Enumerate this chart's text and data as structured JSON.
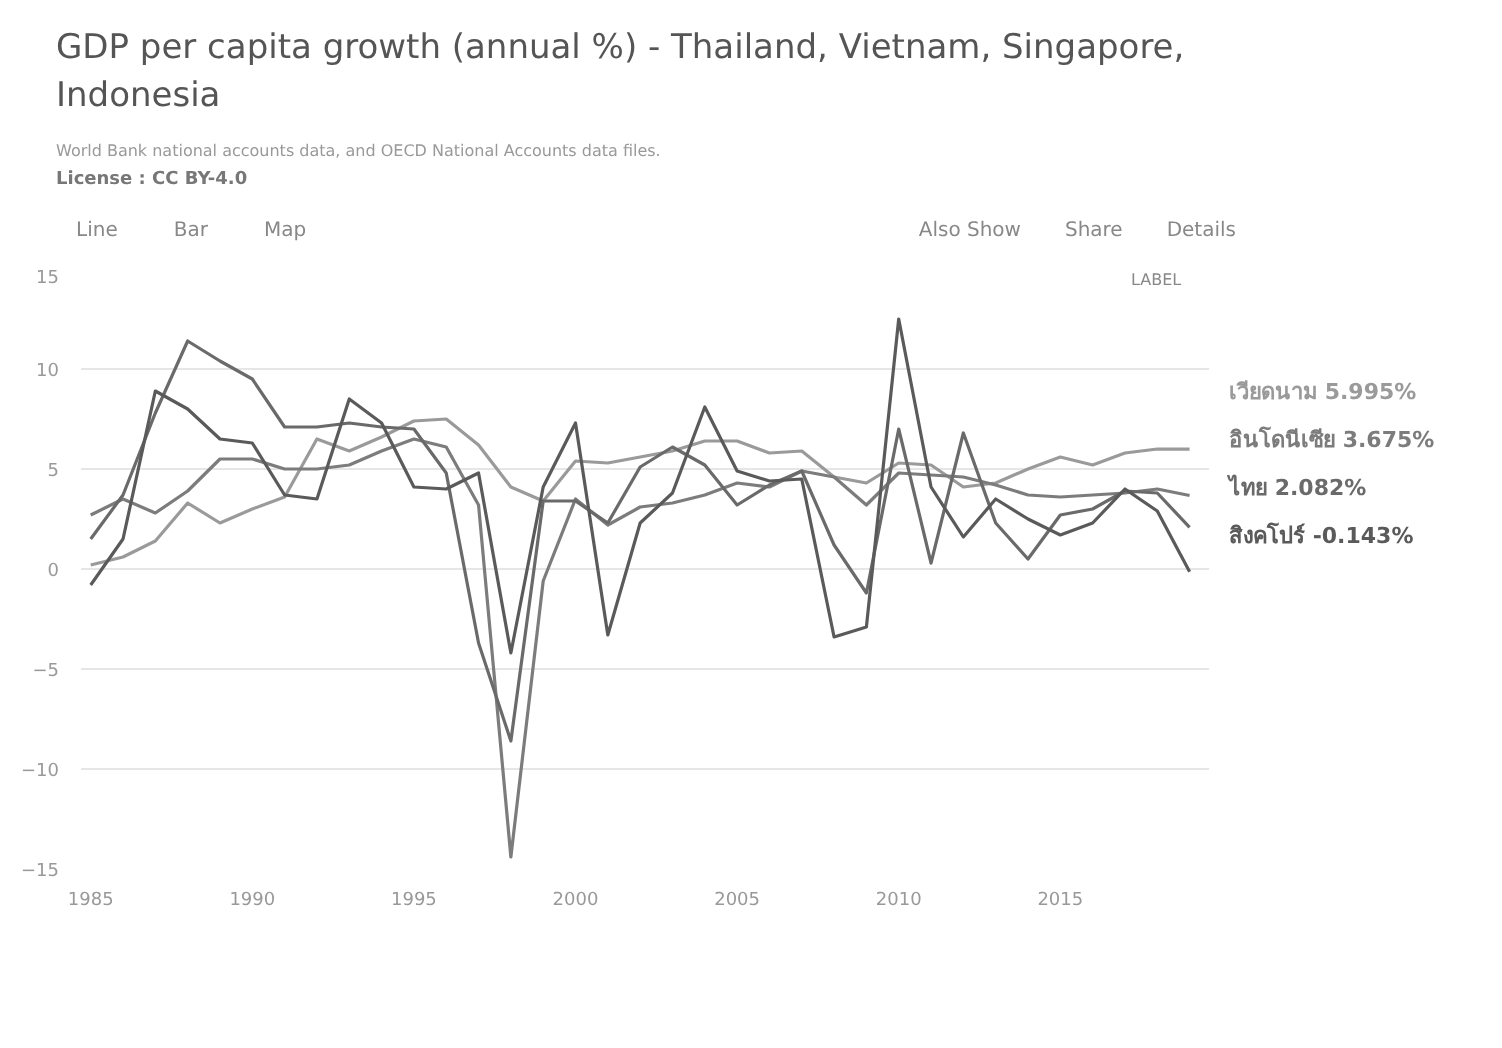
{
  "chart_data": {
    "type": "line",
    "title": "GDP per capita growth (annual %) - Thailand, Vietnam, Singapore, Indonesia",
    "annotations": [
      "World Bank national accounts data, and OECD National Accounts data files.",
      "License : CC BY-4.0",
      "Line",
      "Bar",
      "Map",
      "Also Show",
      "Share",
      "Details",
      "LABEL"
    ],
    "x": [
      1985,
      1986,
      1987,
      1988,
      1989,
      1990,
      1991,
      1992,
      1993,
      1994,
      1995,
      1996,
      1997,
      1998,
      1999,
      2000,
      2001,
      2002,
      2003,
      2004,
      2005,
      2006,
      2007,
      2008,
      2009,
      2010,
      2011,
      2012,
      2013,
      2014,
      2015,
      2016,
      2017,
      2018,
      2019
    ],
    "xlim": [
      1984.7,
      2019.6
    ],
    "xticks": [
      1985,
      1990,
      1995,
      2000,
      2005,
      2010,
      2015
    ],
    "ylim": [
      -15,
      15
    ],
    "yticks": [
      -15,
      -10,
      -5,
      0,
      5,
      10,
      15
    ],
    "grid": "y",
    "line_style": "solid",
    "marker": "none",
    "series": [
      {
        "name": "เวียดนาม",
        "color": "#9a9a9a",
        "values": [
          0.2,
          0.6,
          1.4,
          3.3,
          2.3,
          3.0,
          3.6,
          6.5,
          5.9,
          6.6,
          7.4,
          7.5,
          6.2,
          4.1,
          3.4,
          5.4,
          5.3,
          5.6,
          5.9,
          6.4,
          6.4,
          5.8,
          5.9,
          4.6,
          4.3,
          5.3,
          5.2,
          4.1,
          4.3,
          5.0,
          5.6,
          5.2,
          5.8,
          6.0,
          5.995
        ],
        "value_labels": [
          null,
          null,
          null,
          null,
          null,
          null,
          null,
          null,
          null,
          null,
          null,
          null,
          null,
          null,
          null,
          null,
          null,
          null,
          null,
          null,
          null,
          null,
          null,
          null,
          null,
          null,
          null,
          null,
          null,
          null,
          null,
          null,
          null,
          null,
          "5.995%"
        ]
      },
      {
        "name": "อินโดนีเซีย",
        "color": "#7c7c7c",
        "values": [
          2.7,
          3.5,
          2.8,
          3.9,
          5.5,
          5.5,
          5.0,
          5.0,
          5.2,
          5.9,
          6.5,
          6.1,
          3.2,
          -14.4,
          -0.6,
          3.5,
          2.2,
          3.1,
          3.3,
          3.7,
          4.3,
          4.1,
          4.9,
          4.6,
          3.2,
          4.8,
          4.7,
          4.6,
          4.2,
          3.7,
          3.6,
          3.7,
          3.8,
          4.0,
          3.675
        ],
        "value_labels": [
          null,
          null,
          null,
          null,
          null,
          null,
          null,
          null,
          null,
          null,
          null,
          null,
          null,
          null,
          null,
          null,
          null,
          null,
          null,
          null,
          null,
          null,
          null,
          null,
          null,
          null,
          null,
          null,
          null,
          null,
          null,
          null,
          null,
          null,
          "3.675%"
        ]
      },
      {
        "name": "ไทย",
        "color": "#6a6a6a",
        "values": [
          1.5,
          3.7,
          7.8,
          11.4,
          10.4,
          9.5,
          7.1,
          7.1,
          7.3,
          7.1,
          7.0,
          4.8,
          -3.7,
          -8.6,
          3.4,
          3.4,
          2.3,
          5.1,
          6.1,
          5.2,
          3.2,
          4.2,
          4.9,
          1.2,
          -1.2,
          7.0,
          0.3,
          6.8,
          2.3,
          0.5,
          2.7,
          3.0,
          3.9,
          3.8,
          2.082
        ],
        "value_labels": [
          null,
          null,
          null,
          null,
          null,
          null,
          null,
          null,
          null,
          null,
          null,
          null,
          null,
          null,
          null,
          null,
          null,
          null,
          null,
          null,
          null,
          null,
          null,
          null,
          null,
          null,
          null,
          null,
          null,
          null,
          null,
          null,
          null,
          null,
          "2.082%"
        ]
      },
      {
        "name": "สิงคโปร์",
        "color": "#5a5a5a",
        "values": [
          -0.8,
          1.5,
          8.9,
          8.0,
          6.5,
          6.3,
          3.7,
          3.5,
          8.5,
          7.3,
          4.1,
          4.0,
          4.8,
          -4.2,
          4.1,
          7.3,
          -3.3,
          2.3,
          3.8,
          8.1,
          4.9,
          4.4,
          4.5,
          -3.4,
          -2.9,
          12.5,
          4.1,
          1.6,
          3.5,
          2.5,
          1.7,
          2.3,
          4.0,
          2.9,
          -0.143
        ],
        "value_labels": [
          null,
          null,
          null,
          null,
          null,
          null,
          null,
          null,
          null,
          null,
          null,
          null,
          null,
          null,
          null,
          null,
          null,
          null,
          null,
          null,
          null,
          null,
          null,
          null,
          null,
          null,
          null,
          null,
          null,
          null,
          null,
          null,
          null,
          null,
          "-0.143%"
        ]
      }
    ]
  }
}
